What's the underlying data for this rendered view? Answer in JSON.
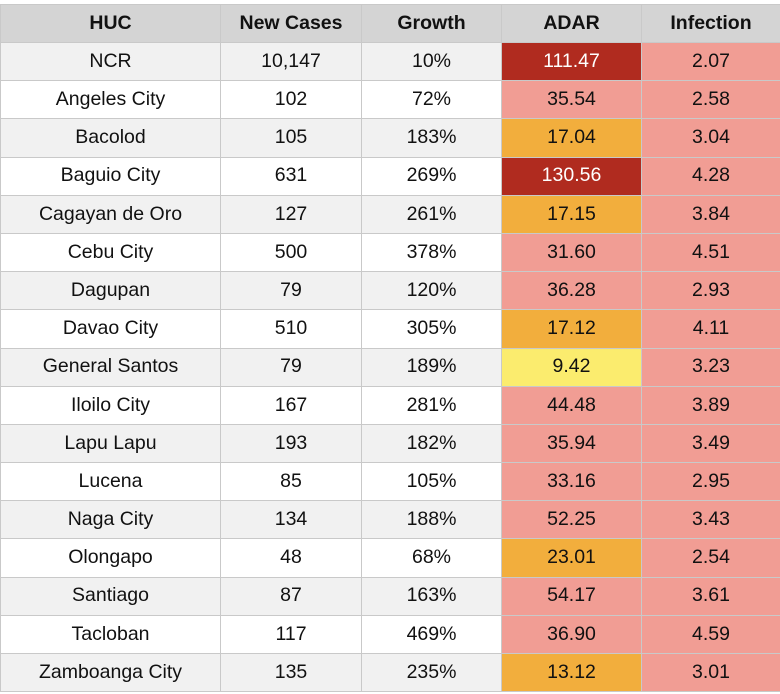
{
  "table": {
    "headers": [
      "HUC",
      "New Cases",
      "Growth",
      "ADAR",
      "Infection"
    ],
    "colors": {
      "header_bg": "#d4d4d4",
      "adar_red": "#b02b1f",
      "adar_pink": "#f19d94",
      "adar_orange": "#f2ae3d",
      "adar_yellow": "#fbec6e",
      "infection_bg": "#f19d94"
    },
    "rows": [
      {
        "huc": "NCR",
        "new_cases": "10,147",
        "growth": "10%",
        "adar": "111.47",
        "adar_level": "red",
        "infection": "2.07"
      },
      {
        "huc": "Angeles City",
        "new_cases": "102",
        "growth": "72%",
        "adar": "35.54",
        "adar_level": "pink",
        "infection": "2.58"
      },
      {
        "huc": "Bacolod",
        "new_cases": "105",
        "growth": "183%",
        "adar": "17.04",
        "adar_level": "orange",
        "infection": "3.04"
      },
      {
        "huc": "Baguio City",
        "new_cases": "631",
        "growth": "269%",
        "adar": "130.56",
        "adar_level": "red",
        "infection": "4.28"
      },
      {
        "huc": "Cagayan de Oro",
        "new_cases": "127",
        "growth": "261%",
        "adar": "17.15",
        "adar_level": "orange",
        "infection": "3.84"
      },
      {
        "huc": "Cebu City",
        "new_cases": "500",
        "growth": "378%",
        "adar": "31.60",
        "adar_level": "pink",
        "infection": "4.51"
      },
      {
        "huc": "Dagupan",
        "new_cases": "79",
        "growth": "120%",
        "adar": "36.28",
        "adar_level": "pink",
        "infection": "2.93"
      },
      {
        "huc": "Davao City",
        "new_cases": "510",
        "growth": "305%",
        "adar": "17.12",
        "adar_level": "orange",
        "infection": "4.11"
      },
      {
        "huc": "General Santos",
        "new_cases": "79",
        "growth": "189%",
        "adar": "9.42",
        "adar_level": "yellow",
        "infection": "3.23"
      },
      {
        "huc": "Iloilo City",
        "new_cases": "167",
        "growth": "281%",
        "adar": "44.48",
        "adar_level": "pink",
        "infection": "3.89"
      },
      {
        "huc": "Lapu Lapu",
        "new_cases": "193",
        "growth": "182%",
        "adar": "35.94",
        "adar_level": "pink",
        "infection": "3.49"
      },
      {
        "huc": "Lucena",
        "new_cases": "85",
        "growth": "105%",
        "adar": "33.16",
        "adar_level": "pink",
        "infection": "2.95"
      },
      {
        "huc": "Naga City",
        "new_cases": "134",
        "growth": "188%",
        "adar": "52.25",
        "adar_level": "pink",
        "infection": "3.43"
      },
      {
        "huc": "Olongapo",
        "new_cases": "48",
        "growth": "68%",
        "adar": "23.01",
        "adar_level": "orange",
        "infection": "2.54"
      },
      {
        "huc": "Santiago",
        "new_cases": "87",
        "growth": "163%",
        "adar": "54.17",
        "adar_level": "pink",
        "infection": "3.61"
      },
      {
        "huc": "Tacloban",
        "new_cases": "117",
        "growth": "469%",
        "adar": "36.90",
        "adar_level": "pink",
        "infection": "4.59"
      },
      {
        "huc": "Zamboanga City",
        "new_cases": "135",
        "growth": "235%",
        "adar": "13.12",
        "adar_level": "orange",
        "infection": "3.01"
      }
    ]
  }
}
